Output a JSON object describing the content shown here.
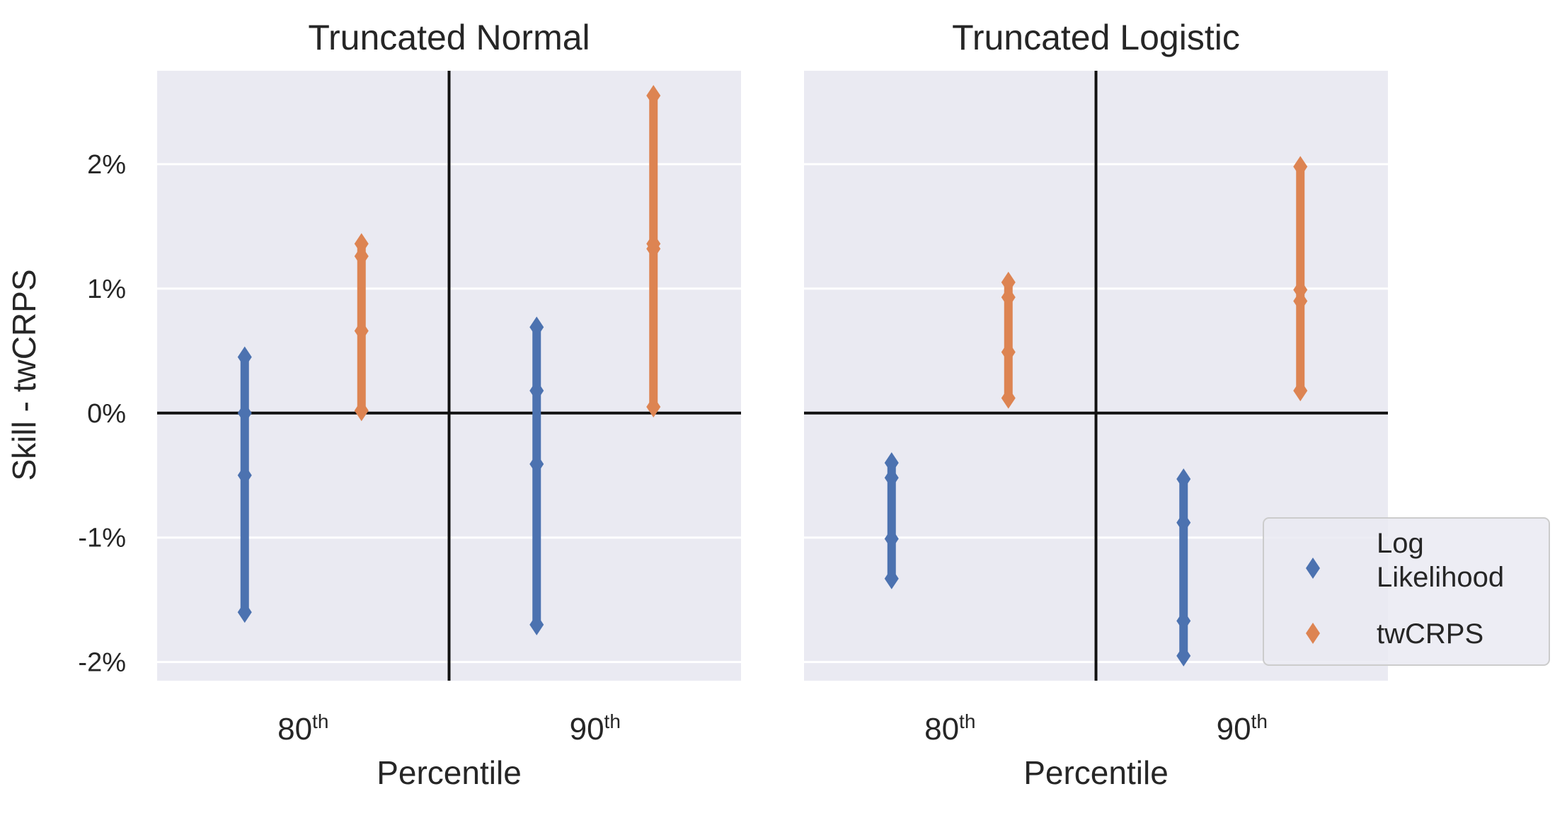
{
  "chart_data": [
    {
      "type": "scatter",
      "title": "Truncated Normal",
      "xlabel": "Percentile",
      "ylabel": "Skill - twCRPS",
      "categories": [
        "80",
        "90"
      ],
      "category_suffix": "th",
      "yticks": [
        "-2%",
        "-1%",
        "0%",
        "1%",
        "2%"
      ],
      "ytick_values": [
        -2,
        -1,
        0,
        1,
        2
      ],
      "ylim": [
        -2.15,
        2.75
      ],
      "grid": true,
      "reference_lines": {
        "horizontal": 0,
        "vertical_between_categories": true
      },
      "series": [
        {
          "name": "Log Likelihood",
          "color": "#4c72b0",
          "points": [
            {
              "category": "80",
              "values": [
                0.45,
                0.0,
                -0.5,
                -1.6
              ]
            },
            {
              "category": "90",
              "values": [
                0.69,
                0.18,
                -0.41,
                -1.7
              ]
            }
          ]
        },
        {
          "name": "twCRPS",
          "color": "#dd8452",
          "points": [
            {
              "category": "80",
              "values": [
                1.36,
                1.26,
                0.66,
                0.02
              ]
            },
            {
              "category": "90",
              "values": [
                2.55,
                1.36,
                1.32,
                0.05
              ]
            }
          ]
        }
      ]
    },
    {
      "type": "scatter",
      "title": "Truncated Logistic",
      "xlabel": "Percentile",
      "categories": [
        "80",
        "90"
      ],
      "category_suffix": "th",
      "ylim": [
        -2.15,
        2.75
      ],
      "grid": true,
      "reference_lines": {
        "horizontal": 0,
        "vertical_between_categories": true
      },
      "series": [
        {
          "name": "Log Likelihood",
          "color": "#4c72b0",
          "points": [
            {
              "category": "80",
              "values": [
                -0.4,
                -0.52,
                -1.01,
                -1.33
              ]
            },
            {
              "category": "90",
              "values": [
                -0.53,
                -0.88,
                -1.67,
                -1.95
              ]
            }
          ]
        },
        {
          "name": "twCRPS",
          "color": "#dd8452",
          "points": [
            {
              "category": "80",
              "values": [
                1.05,
                0.93,
                0.49,
                0.12
              ]
            },
            {
              "category": "90",
              "values": [
                1.98,
                0.99,
                0.9,
                0.18
              ]
            }
          ]
        }
      ],
      "legend": {
        "placement": "lower-right",
        "entries": [
          {
            "label_lines": [
              "Log",
              "Likelihood"
            ],
            "color": "#4c72b0"
          },
          {
            "label_lines": [
              "twCRPS"
            ],
            "color": "#dd8452"
          }
        ]
      }
    }
  ]
}
